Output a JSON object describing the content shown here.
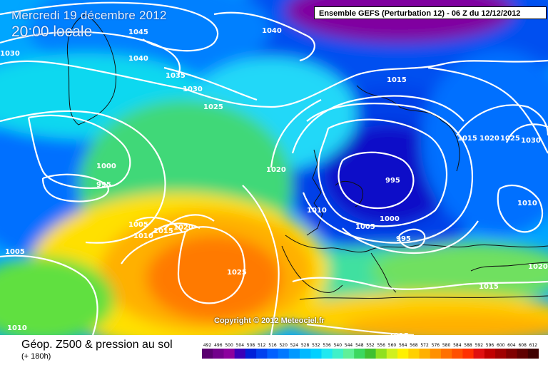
{
  "header": {
    "date": "Mercredi 19 décembre 2012",
    "time": "20:00 locale",
    "run": "Ensemble GEFS (Perturbation 12)  -  06 Z du 12/12/2012"
  },
  "copyright": "Copyright © 2012 Meteociel.fr",
  "caption": {
    "title": "Géop. Z500 & pression au sol",
    "lead": "(+ 180h)"
  },
  "legend": {
    "values": [
      "492",
      "496",
      "500",
      "504",
      "508",
      "512",
      "516",
      "520",
      "524",
      "528",
      "532",
      "536",
      "540",
      "544",
      "548",
      "552",
      "556",
      "560",
      "564",
      "568",
      "572",
      "576",
      "580",
      "584",
      "588",
      "592",
      "596",
      "600",
      "604",
      "608",
      "612"
    ],
    "colors": [
      "#5a0070",
      "#73008c",
      "#8c009e",
      "#3a00b8",
      "#0020d8",
      "#0040ee",
      "#0060ff",
      "#0078ff",
      "#0098ff",
      "#00b8ff",
      "#00d0ff",
      "#20e8f0",
      "#40f0c8",
      "#60f098",
      "#3cd860",
      "#40c030",
      "#90e020",
      "#d0f020",
      "#fff000",
      "#ffd000",
      "#ffb000",
      "#ff9000",
      "#ff7000",
      "#ff5000",
      "#ff3000",
      "#e01010",
      "#c00000",
      "#a00000",
      "#800000",
      "#600000",
      "#400000"
    ]
  },
  "isobars": [
    {
      "label": "1045"
    },
    {
      "label": "1040"
    },
    {
      "label": "1040"
    },
    {
      "label": "1035"
    },
    {
      "label": "1030"
    },
    {
      "label": "1030"
    },
    {
      "label": "1025"
    },
    {
      "label": "1015"
    },
    {
      "label": "1015"
    },
    {
      "label": "1020"
    },
    {
      "label": "1025"
    },
    {
      "label": "1030"
    },
    {
      "label": "1000"
    },
    {
      "label": "995"
    },
    {
      "label": "1020"
    },
    {
      "label": "995"
    },
    {
      "label": "1010"
    },
    {
      "label": "1000"
    },
    {
      "label": "1005"
    },
    {
      "label": "995"
    },
    {
      "label": "1010"
    },
    {
      "label": "1005"
    },
    {
      "label": "1010"
    },
    {
      "label": "1015"
    },
    {
      "label": "1020"
    },
    {
      "label": "1005"
    },
    {
      "label": "1025"
    },
    {
      "label": "1020"
    },
    {
      "label": "1015"
    },
    {
      "label": "1010"
    },
    {
      "label": "1015"
    }
  ]
}
